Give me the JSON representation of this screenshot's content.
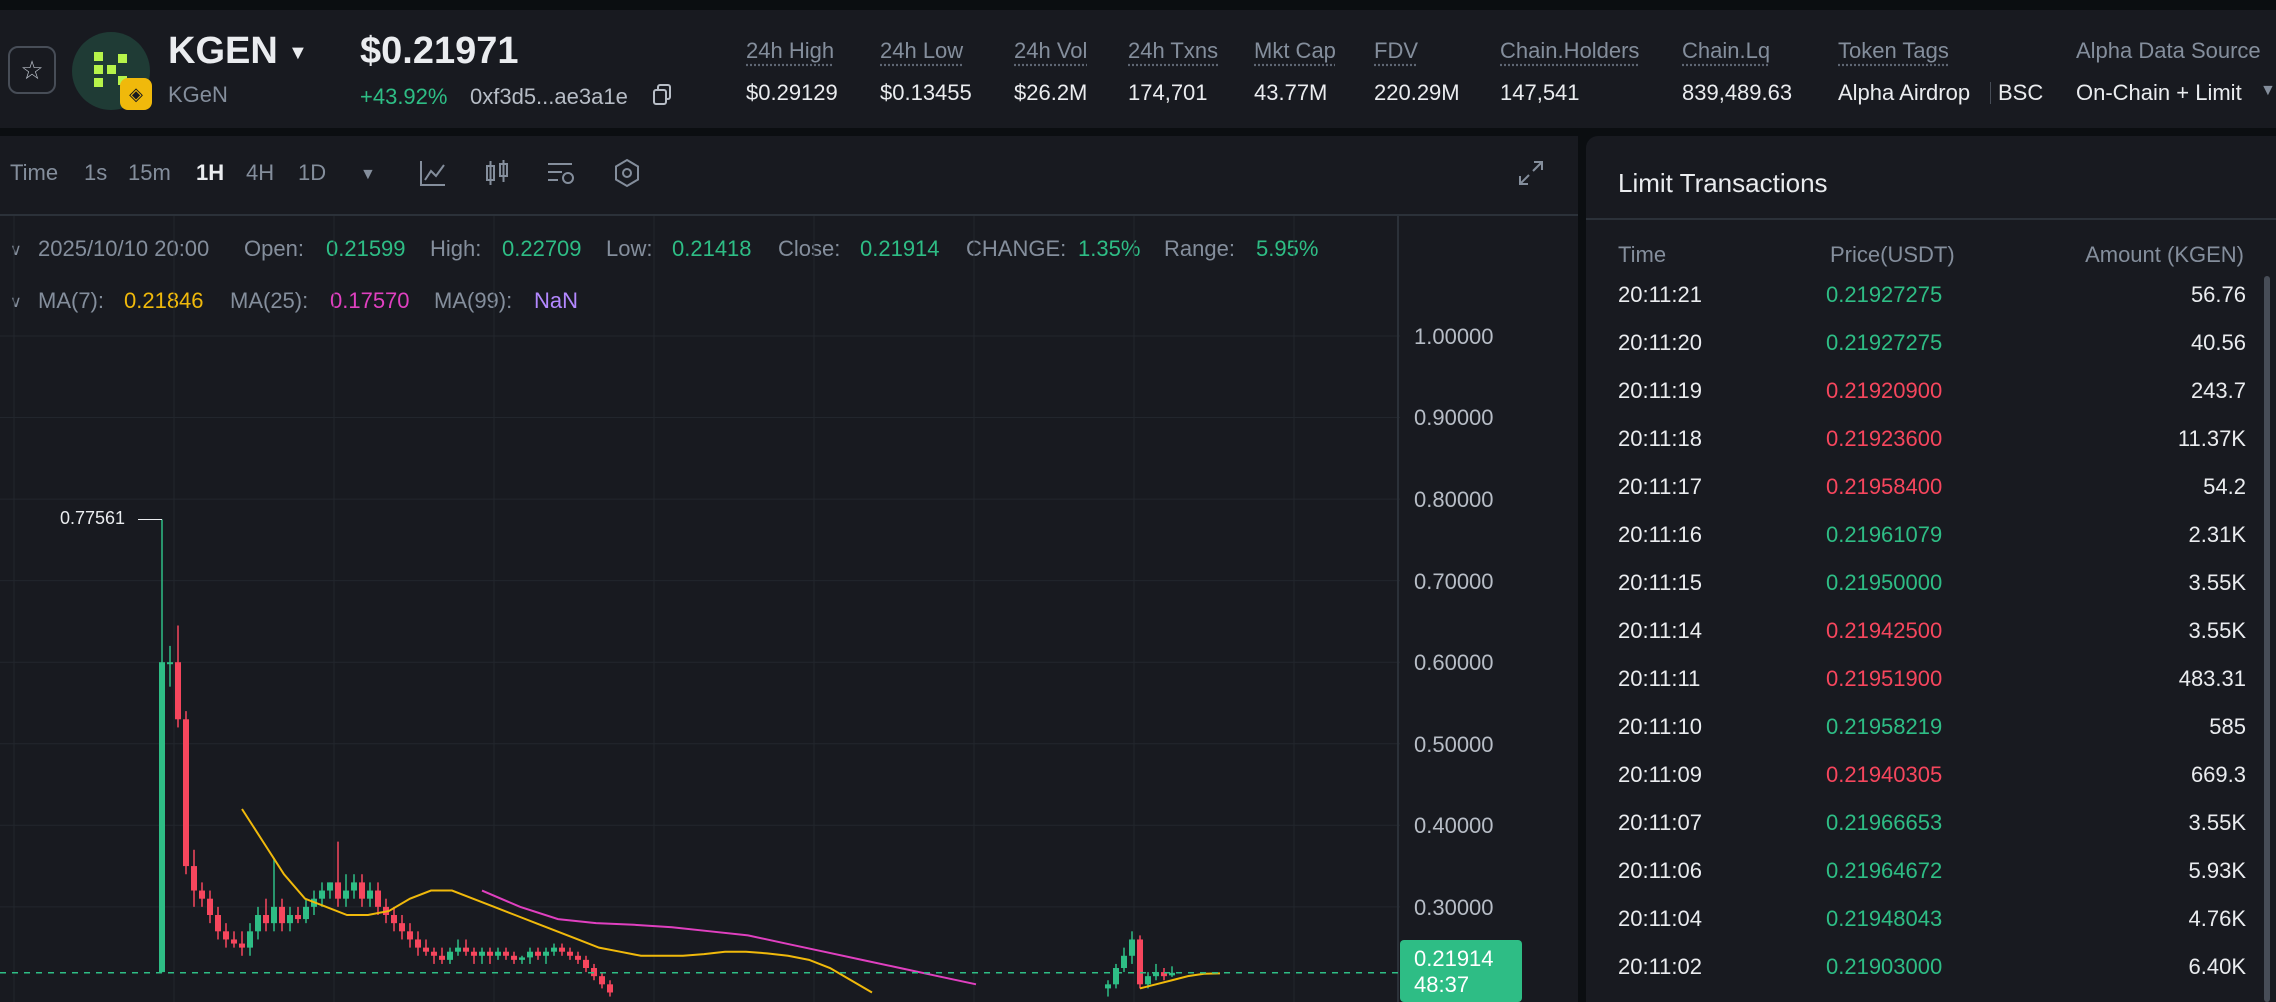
{
  "header": {
    "symbol": "KGEN",
    "name": "KGeN",
    "price": "$0.21971",
    "change": "+43.92%",
    "address": "0xf3d5...ae3a1e",
    "stats": [
      {
        "label": "24h High",
        "value": "$0.29129"
      },
      {
        "label": "24h Low",
        "value": "$0.13455"
      },
      {
        "label": "24h Vol",
        "value": "$26.2M"
      },
      {
        "label": "24h Txns",
        "value": "174,701"
      },
      {
        "label": "Mkt Cap",
        "value": "43.77M"
      },
      {
        "label": "FDV",
        "value": "220.29M"
      },
      {
        "label": "Chain.Holders",
        "value": "147,541"
      },
      {
        "label": "Chain.Lq",
        "value": "839,489.63"
      },
      {
        "label": "Token Tags",
        "value": "Alpha Airdrop",
        "value2": "BSC"
      },
      {
        "label": "Alpha Data Source",
        "value": "On-Chain + Limit"
      }
    ],
    "icons": {
      "star": "star-icon",
      "copy": "copy-icon",
      "dropdown": "chevron-down-icon"
    }
  },
  "toolbar": {
    "intervals": [
      "Time",
      "1s",
      "15m",
      "1H",
      "4H",
      "1D"
    ],
    "active": "1H",
    "tools": [
      "indicator-icon",
      "candle-type-icon",
      "settings-icon",
      "hexagon-icon",
      "fullscreen-icon"
    ]
  },
  "ohlc": {
    "date": "2025/10/10 20:00",
    "open_label": "Open:",
    "open": "0.21599",
    "high_label": "High:",
    "high": "0.22709",
    "low_label": "Low:",
    "low": "0.21418",
    "close_label": "Close:",
    "close": "0.21914",
    "change_label": "CHANGE:",
    "change": "1.35%",
    "range_label": "Range:",
    "range": "5.95%"
  },
  "ma": {
    "ma7_label": "MA(7):",
    "ma7": "0.21846",
    "ma25_label": "MA(25):",
    "ma25": "0.17570",
    "ma99_label": "MA(99):",
    "ma99": "NaN"
  },
  "chart": {
    "y_ticks": [
      "1.00000",
      "0.90000",
      "0.80000",
      "0.70000",
      "0.60000",
      "0.50000",
      "0.40000",
      "0.30000"
    ],
    "peak_label": "0.77561",
    "last_price": "0.21914",
    "countdown": "48:37",
    "colors": {
      "up": "#2ebd85",
      "down": "#f6465d",
      "ma7": "#f0b90b",
      "ma25": "#e040c0"
    }
  },
  "chart_data": {
    "type": "candlestick",
    "ylim": [
      0.2,
      1.05
    ],
    "candles": [
      {
        "o": 0.22,
        "h": 0.775,
        "l": 0.22,
        "c": 0.6
      },
      {
        "o": 0.6,
        "h": 0.62,
        "l": 0.57,
        "c": 0.6
      },
      {
        "o": 0.6,
        "h": 0.645,
        "l": 0.52,
        "c": 0.53
      },
      {
        "o": 0.53,
        "h": 0.54,
        "l": 0.34,
        "c": 0.35
      },
      {
        "o": 0.35,
        "h": 0.37,
        "l": 0.3,
        "c": 0.32
      },
      {
        "o": 0.32,
        "h": 0.33,
        "l": 0.3,
        "c": 0.31
      },
      {
        "o": 0.31,
        "h": 0.32,
        "l": 0.28,
        "c": 0.29
      },
      {
        "o": 0.29,
        "h": 0.3,
        "l": 0.26,
        "c": 0.27
      },
      {
        "o": 0.27,
        "h": 0.28,
        "l": 0.25,
        "c": 0.26
      },
      {
        "o": 0.26,
        "h": 0.27,
        "l": 0.25,
        "c": 0.255
      },
      {
        "o": 0.255,
        "h": 0.27,
        "l": 0.24,
        "c": 0.25
      },
      {
        "o": 0.25,
        "h": 0.28,
        "l": 0.24,
        "c": 0.27
      },
      {
        "o": 0.27,
        "h": 0.3,
        "l": 0.26,
        "c": 0.29
      },
      {
        "o": 0.29,
        "h": 0.31,
        "l": 0.27,
        "c": 0.28
      },
      {
        "o": 0.28,
        "h": 0.36,
        "l": 0.27,
        "c": 0.3
      },
      {
        "o": 0.3,
        "h": 0.31,
        "l": 0.27,
        "c": 0.28
      },
      {
        "o": 0.28,
        "h": 0.3,
        "l": 0.27,
        "c": 0.29
      },
      {
        "o": 0.29,
        "h": 0.3,
        "l": 0.28,
        "c": 0.285
      },
      {
        "o": 0.285,
        "h": 0.31,
        "l": 0.28,
        "c": 0.3
      },
      {
        "o": 0.3,
        "h": 0.32,
        "l": 0.29,
        "c": 0.31
      },
      {
        "o": 0.31,
        "h": 0.33,
        "l": 0.3,
        "c": 0.32
      },
      {
        "o": 0.32,
        "h": 0.33,
        "l": 0.31,
        "c": 0.33
      },
      {
        "o": 0.33,
        "h": 0.38,
        "l": 0.3,
        "c": 0.31
      },
      {
        "o": 0.31,
        "h": 0.34,
        "l": 0.3,
        "c": 0.32
      },
      {
        "o": 0.32,
        "h": 0.34,
        "l": 0.31,
        "c": 0.33
      },
      {
        "o": 0.33,
        "h": 0.34,
        "l": 0.3,
        "c": 0.31
      },
      {
        "o": 0.31,
        "h": 0.33,
        "l": 0.3,
        "c": 0.32
      },
      {
        "o": 0.32,
        "h": 0.33,
        "l": 0.29,
        "c": 0.3
      },
      {
        "o": 0.3,
        "h": 0.31,
        "l": 0.28,
        "c": 0.29
      },
      {
        "o": 0.29,
        "h": 0.3,
        "l": 0.27,
        "c": 0.28
      },
      {
        "o": 0.28,
        "h": 0.29,
        "l": 0.26,
        "c": 0.27
      },
      {
        "o": 0.27,
        "h": 0.28,
        "l": 0.25,
        "c": 0.26
      },
      {
        "o": 0.26,
        "h": 0.27,
        "l": 0.24,
        "c": 0.25
      },
      {
        "o": 0.25,
        "h": 0.26,
        "l": 0.24,
        "c": 0.245
      },
      {
        "o": 0.245,
        "h": 0.25,
        "l": 0.23,
        "c": 0.24
      },
      {
        "o": 0.24,
        "h": 0.25,
        "l": 0.23,
        "c": 0.235
      },
      {
        "o": 0.235,
        "h": 0.25,
        "l": 0.23,
        "c": 0.245
      },
      {
        "o": 0.245,
        "h": 0.26,
        "l": 0.24,
        "c": 0.25
      },
      {
        "o": 0.25,
        "h": 0.26,
        "l": 0.24,
        "c": 0.245
      },
      {
        "o": 0.245,
        "h": 0.25,
        "l": 0.23,
        "c": 0.24
      },
      {
        "o": 0.24,
        "h": 0.25,
        "l": 0.23,
        "c": 0.245
      },
      {
        "o": 0.245,
        "h": 0.25,
        "l": 0.23,
        "c": 0.24
      },
      {
        "o": 0.24,
        "h": 0.25,
        "l": 0.235,
        "c": 0.245
      },
      {
        "o": 0.245,
        "h": 0.25,
        "l": 0.235,
        "c": 0.24
      },
      {
        "o": 0.24,
        "h": 0.245,
        "l": 0.23,
        "c": 0.235
      },
      {
        "o": 0.235,
        "h": 0.24,
        "l": 0.23,
        "c": 0.238
      },
      {
        "o": 0.238,
        "h": 0.25,
        "l": 0.23,
        "c": 0.245
      },
      {
        "o": 0.245,
        "h": 0.25,
        "l": 0.235,
        "c": 0.24
      },
      {
        "o": 0.24,
        "h": 0.25,
        "l": 0.23,
        "c": 0.245
      },
      {
        "o": 0.245,
        "h": 0.255,
        "l": 0.24,
        "c": 0.25
      },
      {
        "o": 0.25,
        "h": 0.255,
        "l": 0.24,
        "c": 0.245
      },
      {
        "o": 0.245,
        "h": 0.25,
        "l": 0.235,
        "c": 0.24
      },
      {
        "o": 0.24,
        "h": 0.245,
        "l": 0.23,
        "c": 0.235
      },
      {
        "o": 0.235,
        "h": 0.24,
        "l": 0.22,
        "c": 0.225
      },
      {
        "o": 0.225,
        "h": 0.23,
        "l": 0.21,
        "c": 0.215
      },
      {
        "o": 0.215,
        "h": 0.22,
        "l": 0.2,
        "c": 0.205
      },
      {
        "o": 0.205,
        "h": 0.21,
        "l": 0.19,
        "c": 0.195
      }
    ],
    "candles_right": [
      {
        "o": 0.2,
        "h": 0.21,
        "l": 0.19,
        "c": 0.205
      },
      {
        "o": 0.205,
        "h": 0.23,
        "l": 0.2,
        "c": 0.225
      },
      {
        "o": 0.225,
        "h": 0.25,
        "l": 0.22,
        "c": 0.24
      },
      {
        "o": 0.24,
        "h": 0.27,
        "l": 0.23,
        "c": 0.26
      },
      {
        "o": 0.26,
        "h": 0.265,
        "l": 0.2,
        "c": 0.205
      },
      {
        "o": 0.205,
        "h": 0.22,
        "l": 0.2,
        "c": 0.215
      },
      {
        "o": 0.215,
        "h": 0.23,
        "l": 0.21,
        "c": 0.22
      },
      {
        "o": 0.22,
        "h": 0.225,
        "l": 0.21,
        "c": 0.215
      },
      {
        "o": 0.21599,
        "h": 0.22709,
        "l": 0.21418,
        "c": 0.21914
      }
    ],
    "ma7": [
      0.42,
      0.38,
      0.34,
      0.31,
      0.3,
      0.29,
      0.29,
      0.295,
      0.31,
      0.32,
      0.32,
      0.31,
      0.3,
      0.29,
      0.28,
      0.27,
      0.26,
      0.25,
      0.245,
      0.24,
      0.24,
      0.24,
      0.242,
      0.245,
      0.245,
      0.243,
      0.24,
      0.235,
      0.225,
      0.21,
      0.195
    ],
    "ma7_right": [
      0.2,
      0.205,
      0.21,
      0.215,
      0.218,
      0.21846
    ],
    "ma25": [
      0.32,
      0.3,
      0.285,
      0.28,
      0.278,
      0.275,
      0.27,
      0.265,
      0.255,
      0.245,
      0.235,
      0.225,
      0.215,
      0.205
    ]
  },
  "limit": {
    "title": "Limit Transactions",
    "columns": [
      "Time",
      "Price(USDT)",
      "Amount (KGEN)"
    ],
    "rows": [
      {
        "time": "20:11:21",
        "price": "0.21927275",
        "amount": "56.76",
        "side": "up"
      },
      {
        "time": "20:11:20",
        "price": "0.21927275",
        "amount": "40.56",
        "side": "up"
      },
      {
        "time": "20:11:19",
        "price": "0.21920900",
        "amount": "243.7",
        "side": "down"
      },
      {
        "time": "20:11:18",
        "price": "0.21923600",
        "amount": "11.37K",
        "side": "down"
      },
      {
        "time": "20:11:17",
        "price": "0.21958400",
        "amount": "54.2",
        "side": "down"
      },
      {
        "time": "20:11:16",
        "price": "0.21961079",
        "amount": "2.31K",
        "side": "up"
      },
      {
        "time": "20:11:15",
        "price": "0.21950000",
        "amount": "3.55K",
        "side": "up"
      },
      {
        "time": "20:11:14",
        "price": "0.21942500",
        "amount": "3.55K",
        "side": "down"
      },
      {
        "time": "20:11:11",
        "price": "0.21951900",
        "amount": "483.31",
        "side": "down"
      },
      {
        "time": "20:11:10",
        "price": "0.21958219",
        "amount": "585",
        "side": "up"
      },
      {
        "time": "20:11:09",
        "price": "0.21940305",
        "amount": "669.3",
        "side": "down"
      },
      {
        "time": "20:11:07",
        "price": "0.21966653",
        "amount": "3.55K",
        "side": "up"
      },
      {
        "time": "20:11:06",
        "price": "0.21964672",
        "amount": "5.93K",
        "side": "up"
      },
      {
        "time": "20:11:04",
        "price": "0.21948043",
        "amount": "4.76K",
        "side": "up"
      },
      {
        "time": "20:11:02",
        "price": "0.21903000",
        "amount": "6.40K",
        "side": "up"
      }
    ]
  }
}
